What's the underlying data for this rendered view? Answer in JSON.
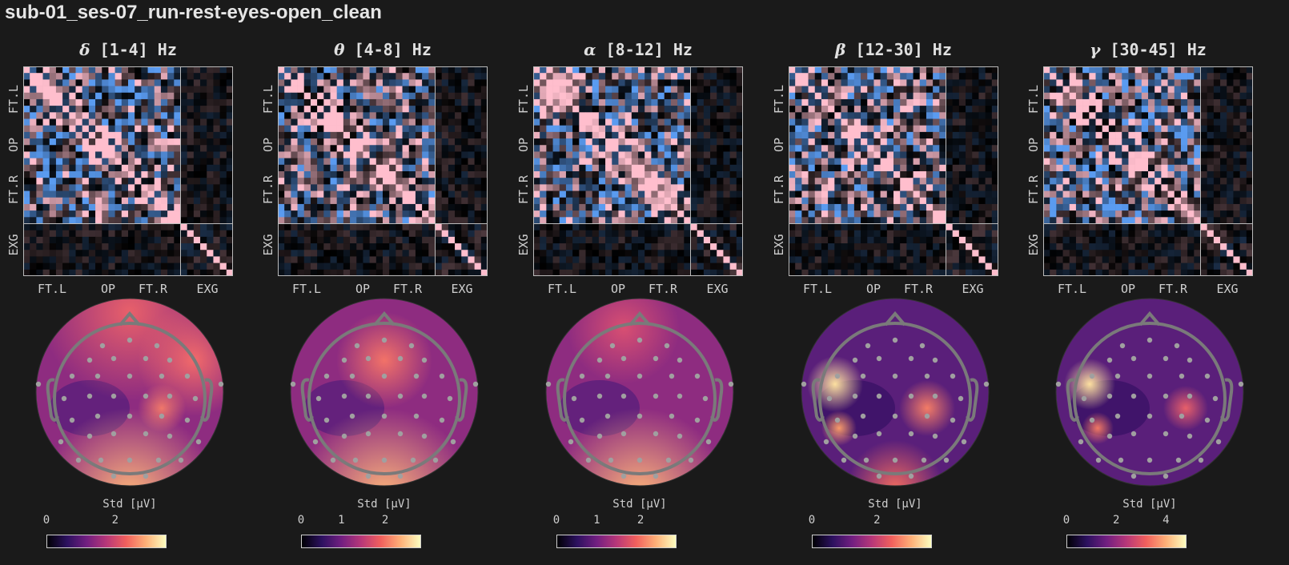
{
  "title": "sub-01_ses-07_run-rest-eyes-open_clean",
  "axis_groups": [
    "FT.L",
    "OP",
    "FT.R",
    "EXG"
  ],
  "colorbar_label": "Std [μV]",
  "colors": {
    "positive": "#f4a0b0",
    "negative": "#5a9be8",
    "zero": "#000000",
    "colormap": "magma"
  },
  "chart_data": [
    {
      "type": "heatmap+topomap",
      "band": "δ",
      "range": "[1-4] Hz",
      "colorbar_ticks": [
        "0",
        "2"
      ],
      "colorbar_range": [
        0,
        3.5
      ]
    },
    {
      "type": "heatmap+topomap",
      "band": "θ",
      "range": "[4-8] Hz",
      "colorbar_ticks": [
        "0",
        "1",
        "2"
      ],
      "colorbar_range": [
        0,
        2.9
      ]
    },
    {
      "type": "heatmap+topomap",
      "band": "α",
      "range": "[8-12] Hz",
      "colorbar_ticks": [
        "0",
        "1",
        "2"
      ],
      "colorbar_range": [
        0,
        2.9
      ]
    },
    {
      "type": "heatmap+topomap",
      "band": "β",
      "range": "[12-30] Hz",
      "colorbar_ticks": [
        "0",
        "2"
      ],
      "colorbar_range": [
        0,
        3.7
      ]
    },
    {
      "type": "heatmap+topomap",
      "band": "γ",
      "range": "[30-45] Hz",
      "colorbar_ticks": [
        "0",
        "2",
        "4"
      ],
      "colorbar_range": [
        0,
        4.7
      ]
    }
  ]
}
